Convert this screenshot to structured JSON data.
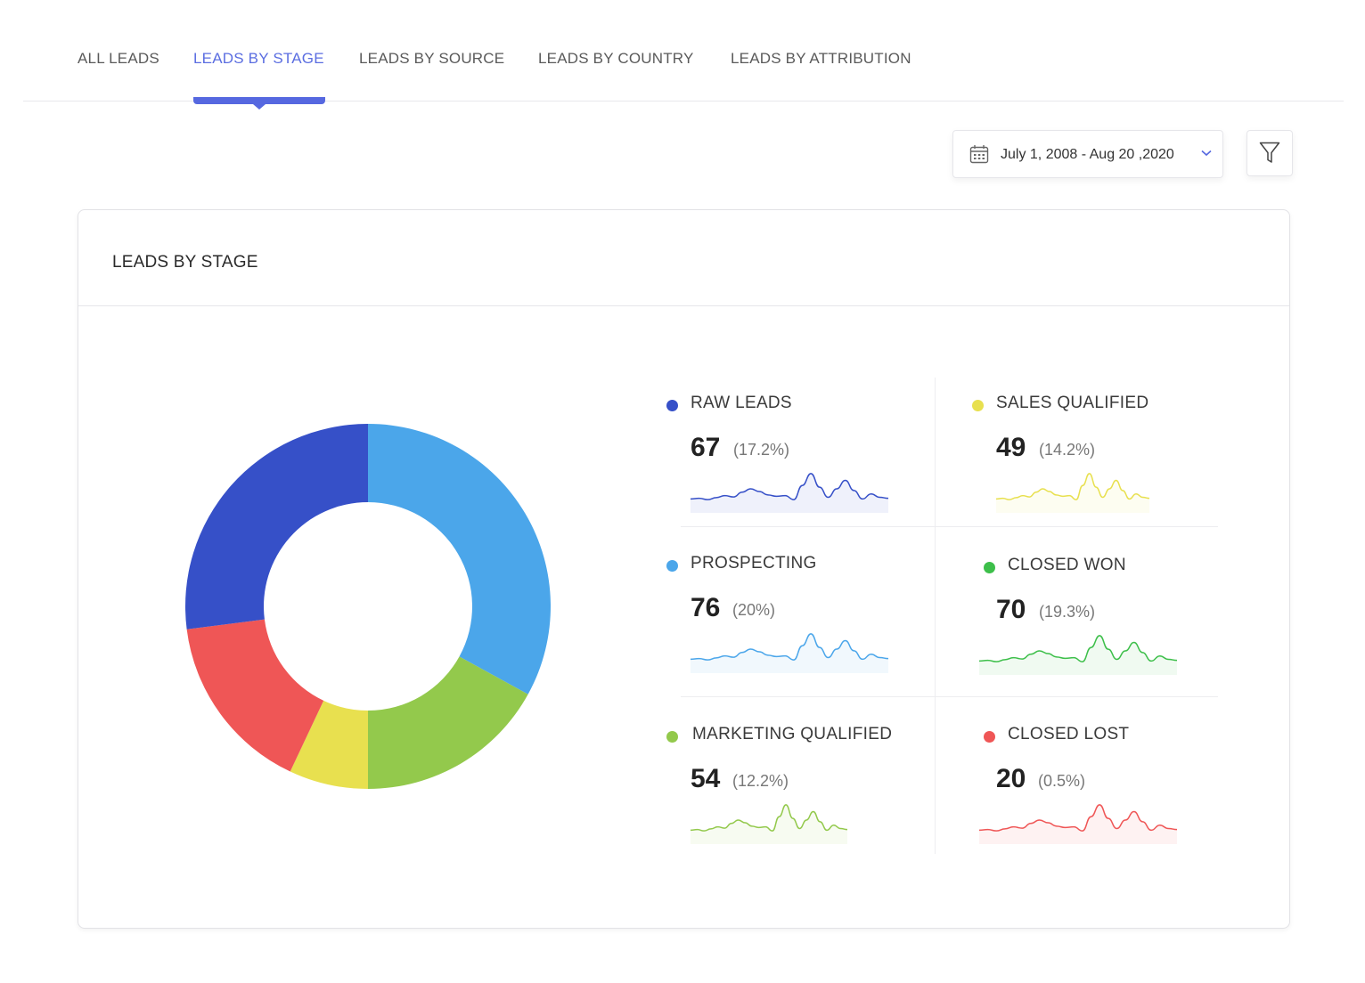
{
  "tabs": [
    {
      "label": "ALL LEADS",
      "active": false
    },
    {
      "label": "LEADS BY STAGE",
      "active": true
    },
    {
      "label": "LEADS BY SOURCE",
      "active": false
    },
    {
      "label": "LEADS BY COUNTRY",
      "active": false
    },
    {
      "label": "LEADS BY ATTRIBUTION",
      "active": false
    }
  ],
  "accent_color": "#5668e0",
  "date_range": {
    "label": "July 1, 2008  - Aug 20 ,2020",
    "icon": "calendar-icon",
    "dropdown_icon": "chevron-down-icon"
  },
  "filter": {
    "icon": "funnel-icon"
  },
  "card": {
    "title": "LEADS BY STAGE"
  },
  "stages": [
    {
      "key": "raw",
      "label": "RAW LEADS",
      "value": "67",
      "pct": "(17.2%)",
      "color": "#3650c8"
    },
    {
      "key": "sales",
      "label": "SALES QUALIFIED",
      "value": "49",
      "pct": "(14.2%)",
      "color": "#e8e04f"
    },
    {
      "key": "prospecting",
      "label": "PROSPECTING",
      "value": "76",
      "pct": "(20%)",
      "color": "#4ba6ea"
    },
    {
      "key": "won",
      "label": "CLOSED WON",
      "value": "70",
      "pct": "(19.3%)",
      "color": "#3dbf4a"
    },
    {
      "key": "marketing",
      "label": "MARKETING QUALIFIED",
      "value": "54",
      "pct": "(12.2%)",
      "color": "#93c94c"
    },
    {
      "key": "lost",
      "label": "CLOSED LOST",
      "value": "20",
      "pct": "(0.5%)",
      "color": "#ef5656"
    }
  ],
  "chart_data": {
    "type": "pie",
    "subtype": "donut",
    "segments": [
      {
        "label": "PROSPECTING",
        "value": 33,
        "color": "#4ba6ea"
      },
      {
        "label": "MARKETING QUALIFIED",
        "value": 17,
        "color": "#93c94c"
      },
      {
        "label": "SALES QUALIFIED",
        "value": 7,
        "color": "#e8e04f"
      },
      {
        "label": "CLOSED LOST",
        "value": 16,
        "color": "#ef5656"
      },
      {
        "label": "RAW LEADS",
        "value": 27,
        "color": "#3650c8"
      }
    ],
    "legend_placement": "right"
  }
}
